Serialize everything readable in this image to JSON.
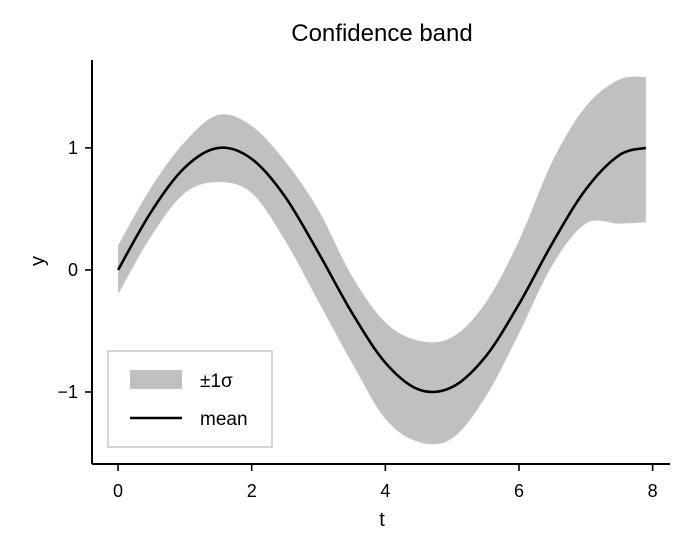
{
  "chart_data": {
    "type": "area",
    "title": "Confidence band",
    "xlabel": "t",
    "ylabel": "y",
    "xlim": [
      -0.39,
      8.26
    ],
    "ylim": [
      -1.59,
      1.72
    ],
    "xticks": [
      0,
      2,
      4,
      6,
      8
    ],
    "xtick_labels": [
      "0",
      "2",
      "4",
      "6",
      "8"
    ],
    "yticks": [
      -1,
      0,
      1
    ],
    "ytick_labels": [
      "−1",
      "0",
      "1"
    ],
    "grid": false,
    "legend_position": "lower-left",
    "x": [
      0,
      0.5,
      1,
      1.5,
      2,
      2.5,
      3,
      3.5,
      4,
      4.5,
      5,
      5.5,
      6,
      6.5,
      7,
      7.5,
      7.9
    ],
    "series": [
      {
        "name": "±1σ",
        "kind": "band",
        "color": "#c0c0c0",
        "lower": [
          -0.2,
          0.28,
          0.63,
          0.72,
          0.63,
          0.24,
          -0.26,
          -0.76,
          -1.22,
          -1.41,
          -1.38,
          -1.04,
          -0.52,
          0.04,
          0.38,
          0.38,
          0.39
        ],
        "upper": [
          0.2,
          0.68,
          1.05,
          1.27,
          1.18,
          0.89,
          0.49,
          -0.05,
          -0.43,
          -0.58,
          -0.55,
          -0.27,
          0.24,
          0.89,
          1.34,
          1.56,
          1.58
        ]
      },
      {
        "name": "mean",
        "kind": "line",
        "color": "#000000",
        "values": [
          0,
          0.48,
          0.84,
          1.0,
          0.91,
          0.6,
          0.14,
          -0.35,
          -0.76,
          -0.98,
          -0.96,
          -0.71,
          -0.28,
          0.22,
          0.66,
          0.94,
          1.0
        ]
      }
    ]
  }
}
